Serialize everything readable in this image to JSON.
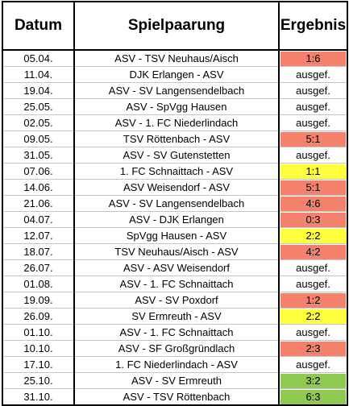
{
  "headers": {
    "date": "Datum",
    "match": "Spielpaarung",
    "result": "Ergebnis"
  },
  "colors": {
    "loss": "#f4816b",
    "draw": "#ffff3b",
    "win": "#8fc951"
  },
  "rows": [
    {
      "date": "05.04.",
      "match": "ASV - TSV Neuhaus/Aisch",
      "result": "1:6",
      "outcome": "loss"
    },
    {
      "date": "11.04.",
      "match": "DJK Erlangen - ASV",
      "result": "ausgef.",
      "outcome": "none"
    },
    {
      "date": "19.04.",
      "match": "ASV - SV Langensendelbach",
      "result": "ausgef.",
      "outcome": "none"
    },
    {
      "date": "25.05.",
      "match": "ASV - SpVgg Hausen",
      "result": "ausgef.",
      "outcome": "none"
    },
    {
      "date": "02.05.",
      "match": "ASV - 1. FC Niederlindach",
      "result": "ausgef.",
      "outcome": "none"
    },
    {
      "date": "09.05.",
      "match": "TSV Röttenbach - ASV",
      "result": "5:1",
      "outcome": "loss"
    },
    {
      "date": "31.05.",
      "match": "ASV - SV Gutenstetten",
      "result": "ausgef.",
      "outcome": "none"
    },
    {
      "date": "07.06.",
      "match": "1. FC Schnaittach - ASV",
      "result": "1:1",
      "outcome": "draw"
    },
    {
      "date": "14.06.",
      "match": "ASV Weisendorf - ASV",
      "result": "5:1",
      "outcome": "loss"
    },
    {
      "date": "21.06.",
      "match": "ASV - SV Langensendelbach",
      "result": "4:6",
      "outcome": "loss"
    },
    {
      "date": "04.07.",
      "match": "ASV - DJK Erlangen",
      "result": "0:3",
      "outcome": "loss"
    },
    {
      "date": "12.07.",
      "match": "SpVgg Hausen - ASV",
      "result": "2:2",
      "outcome": "draw"
    },
    {
      "date": "18.07.",
      "match": "TSV Neuhaus/Aisch - ASV",
      "result": "4:2",
      "outcome": "loss"
    },
    {
      "date": "26.07.",
      "match": "ASV - ASV Weisendorf",
      "result": "ausgef.",
      "outcome": "none"
    },
    {
      "date": "01.08.",
      "match": "ASV - 1. FC Schnaittach",
      "result": "ausgef.",
      "outcome": "none"
    },
    {
      "date": "19.09.",
      "match": "ASV - SV Poxdorf",
      "result": "1:2",
      "outcome": "loss"
    },
    {
      "date": "26.09.",
      "match": "SV Ermreuth - ASV",
      "result": "2:2",
      "outcome": "draw"
    },
    {
      "date": "01.10.",
      "match": "ASV - 1. FC Schnaittach",
      "result": "ausgef.",
      "outcome": "none"
    },
    {
      "date": "10.10.",
      "match": "ASV - SF Großgründlach",
      "result": "2:3",
      "outcome": "loss"
    },
    {
      "date": "17.10.",
      "match": "1. FC Niederlindach - ASV",
      "result": "ausgef.",
      "outcome": "none"
    },
    {
      "date": "25.10.",
      "match": "ASV - SV Ermreuth",
      "result": "3:2",
      "outcome": "win"
    },
    {
      "date": "31.10.",
      "match": "ASV - TSV Röttenbach",
      "result": "6:3",
      "outcome": "win"
    }
  ]
}
